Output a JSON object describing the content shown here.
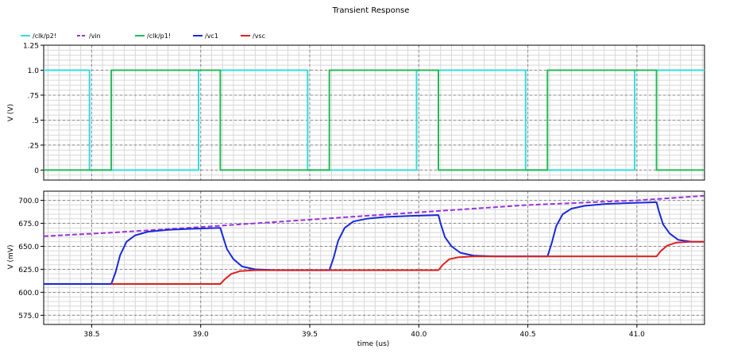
{
  "title": "Transient Response",
  "chart_data": [
    {
      "type": "line",
      "ylabel": "V (V)",
      "xlabel": "",
      "xlim": [
        38.28,
        41.31
      ],
      "ylim": [
        -0.1,
        1.25
      ],
      "xticks": [
        38.5,
        39.0,
        39.5,
        40.0,
        40.5,
        41.0
      ],
      "yticks": [
        0,
        0.25,
        0.5,
        0.75,
        1.0,
        1.25
      ],
      "ytick_labels": [
        "0",
        ".25",
        ".5",
        ".75",
        "1.0",
        "1.25"
      ],
      "grid": true,
      "legend": "top-left",
      "series": [
        {
          "name": "/clk/p2!",
          "color": "#33dddd",
          "dash": false,
          "points": [
            [
              38.28,
              1.0
            ],
            [
              38.49,
              1.0
            ],
            [
              38.49,
              0.0
            ],
            [
              38.99,
              0.0
            ],
            [
              38.99,
              1.0
            ],
            [
              39.49,
              1.0
            ],
            [
              39.49,
              0.0
            ],
            [
              39.99,
              0.0
            ],
            [
              39.99,
              1.0
            ],
            [
              40.49,
              1.0
            ],
            [
              40.49,
              0.0
            ],
            [
              40.99,
              0.0
            ],
            [
              40.99,
              1.0
            ],
            [
              41.31,
              1.0
            ]
          ]
        },
        {
          "name": "/clk/p1!",
          "color": "#22bb55",
          "dash": false,
          "points": [
            [
              38.28,
              0.0
            ],
            [
              38.59,
              0.0
            ],
            [
              38.59,
              1.0
            ],
            [
              39.09,
              1.0
            ],
            [
              39.09,
              0.0
            ],
            [
              39.59,
              0.0
            ],
            [
              39.59,
              1.0
            ],
            [
              40.09,
              1.0
            ],
            [
              40.09,
              0.0
            ],
            [
              40.59,
              0.0
            ],
            [
              40.59,
              1.0
            ],
            [
              41.09,
              1.0
            ],
            [
              41.09,
              0.0
            ],
            [
              41.31,
              0.0
            ]
          ]
        }
      ]
    },
    {
      "type": "line",
      "ylabel": "V (mV)",
      "xlabel": "time (us)",
      "xlim": [
        38.28,
        41.31
      ],
      "ylim": [
        565,
        710
      ],
      "xticks": [
        38.5,
        39.0,
        39.5,
        40.0,
        40.5,
        41.0
      ],
      "yticks": [
        575,
        600,
        625,
        650,
        675,
        700
      ],
      "ytick_labels": [
        "575.0",
        "600.0",
        "625.0",
        "650.0",
        "675.0",
        "700.0"
      ],
      "grid": true,
      "series": [
        {
          "name": "/vin",
          "color": "#9933dd",
          "dash": true,
          "points": [
            [
              38.28,
              661
            ],
            [
              38.6,
              665
            ],
            [
              39.0,
              671
            ],
            [
              39.5,
              679
            ],
            [
              40.0,
              687
            ],
            [
              40.5,
              695
            ],
            [
              41.0,
              700
            ],
            [
              41.31,
              705
            ]
          ]
        },
        {
          "name": "/vc1",
          "color": "#1a2ad8",
          "dash": false,
          "points": [
            [
              38.28,
              609
            ],
            [
              38.59,
              609
            ],
            [
              38.61,
              622
            ],
            [
              38.63,
              640
            ],
            [
              38.66,
              655
            ],
            [
              38.7,
              662
            ],
            [
              38.76,
              666
            ],
            [
              38.85,
              668
            ],
            [
              38.95,
              669
            ],
            [
              39.09,
              670
            ],
            [
              39.1,
              662
            ],
            [
              39.12,
              647
            ],
            [
              39.15,
              636
            ],
            [
              39.19,
              628
            ],
            [
              39.25,
              625
            ],
            [
              39.35,
              624
            ],
            [
              39.59,
              624
            ],
            [
              39.61,
              638
            ],
            [
              39.63,
              656
            ],
            [
              39.66,
              670
            ],
            [
              39.7,
              677
            ],
            [
              39.76,
              680
            ],
            [
              39.85,
              682
            ],
            [
              39.95,
              683
            ],
            [
              40.09,
              684
            ],
            [
              40.1,
              675
            ],
            [
              40.12,
              660
            ],
            [
              40.15,
              650
            ],
            [
              40.19,
              643
            ],
            [
              40.25,
              640
            ],
            [
              40.35,
              639
            ],
            [
              40.59,
              639
            ],
            [
              40.61,
              654
            ],
            [
              40.63,
              672
            ],
            [
              40.66,
              685
            ],
            [
              40.7,
              691
            ],
            [
              40.76,
              694
            ],
            [
              40.85,
              696
            ],
            [
              40.95,
              697
            ],
            [
              41.09,
              698
            ],
            [
              41.1,
              689
            ],
            [
              41.12,
              674
            ],
            [
              41.15,
              664
            ],
            [
              41.19,
              657
            ],
            [
              41.25,
              655
            ],
            [
              41.31,
              655
            ]
          ]
        },
        {
          "name": "/vsc",
          "color": "#dd2222",
          "dash": false,
          "points": [
            [
              38.59,
              609
            ],
            [
              39.09,
              609
            ],
            [
              39.11,
              614
            ],
            [
              39.14,
              620
            ],
            [
              39.18,
              623
            ],
            [
              39.25,
              624
            ],
            [
              39.59,
              624
            ],
            [
              40.09,
              624
            ],
            [
              40.11,
              630
            ],
            [
              40.14,
              636
            ],
            [
              40.18,
              638
            ],
            [
              40.25,
              639
            ],
            [
              40.59,
              639
            ],
            [
              41.09,
              639
            ],
            [
              41.11,
              645
            ],
            [
              41.14,
              651
            ],
            [
              41.18,
              654
            ],
            [
              41.25,
              655
            ],
            [
              41.31,
              655
            ]
          ]
        }
      ]
    }
  ],
  "x_tick_labels": [
    "38.5",
    "39.0",
    "39.5",
    "40.0",
    "40.5",
    "41.0"
  ],
  "legend": [
    "/clk/p2!",
    "/vin",
    "/clk/p1!",
    "/vc1",
    "/vsc"
  ]
}
